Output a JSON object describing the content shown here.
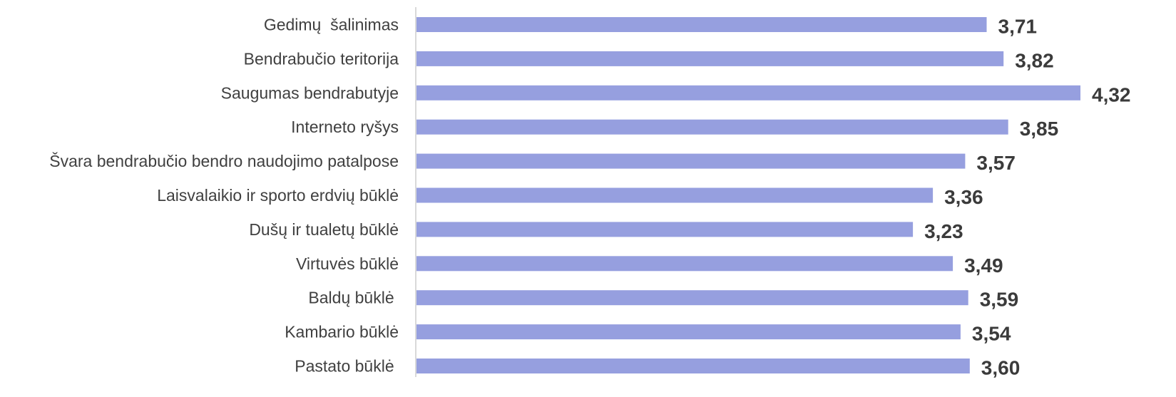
{
  "chart_data": {
    "type": "bar",
    "orientation": "horizontal",
    "categories": [
      "Gedimų  šalinimas",
      "Bendrabučio teritorija",
      "Saugumas bendrabutyje",
      "Interneto ryšys",
      "Švara bendrabučio bendro naudojimo patalpose",
      "Laisvalaikio ir sporto erdvių būklė",
      "Dušų ir tualetų būklė",
      "Virtuvės būklė",
      "Baldų būklė ",
      "Kambario būklė",
      "Pastato būklė "
    ],
    "values": [
      3.71,
      3.82,
      4.32,
      3.85,
      3.57,
      3.36,
      3.23,
      3.49,
      3.59,
      3.54,
      3.6
    ],
    "value_labels": [
      "3,71",
      "3,82",
      "4,32",
      "3,85",
      "3,57",
      "3,36",
      "3,23",
      "3,49",
      "3,59",
      "3,54",
      "3,60"
    ],
    "title": "",
    "xlabel": "",
    "ylabel": "",
    "xlim": [
      0,
      4.32
    ],
    "grid": false,
    "legend": "none",
    "colors": {
      "bar": "#969fdf",
      "axis": "#d9d9d9",
      "label_text": "#404040",
      "value_text": "#3b3b3b"
    }
  }
}
